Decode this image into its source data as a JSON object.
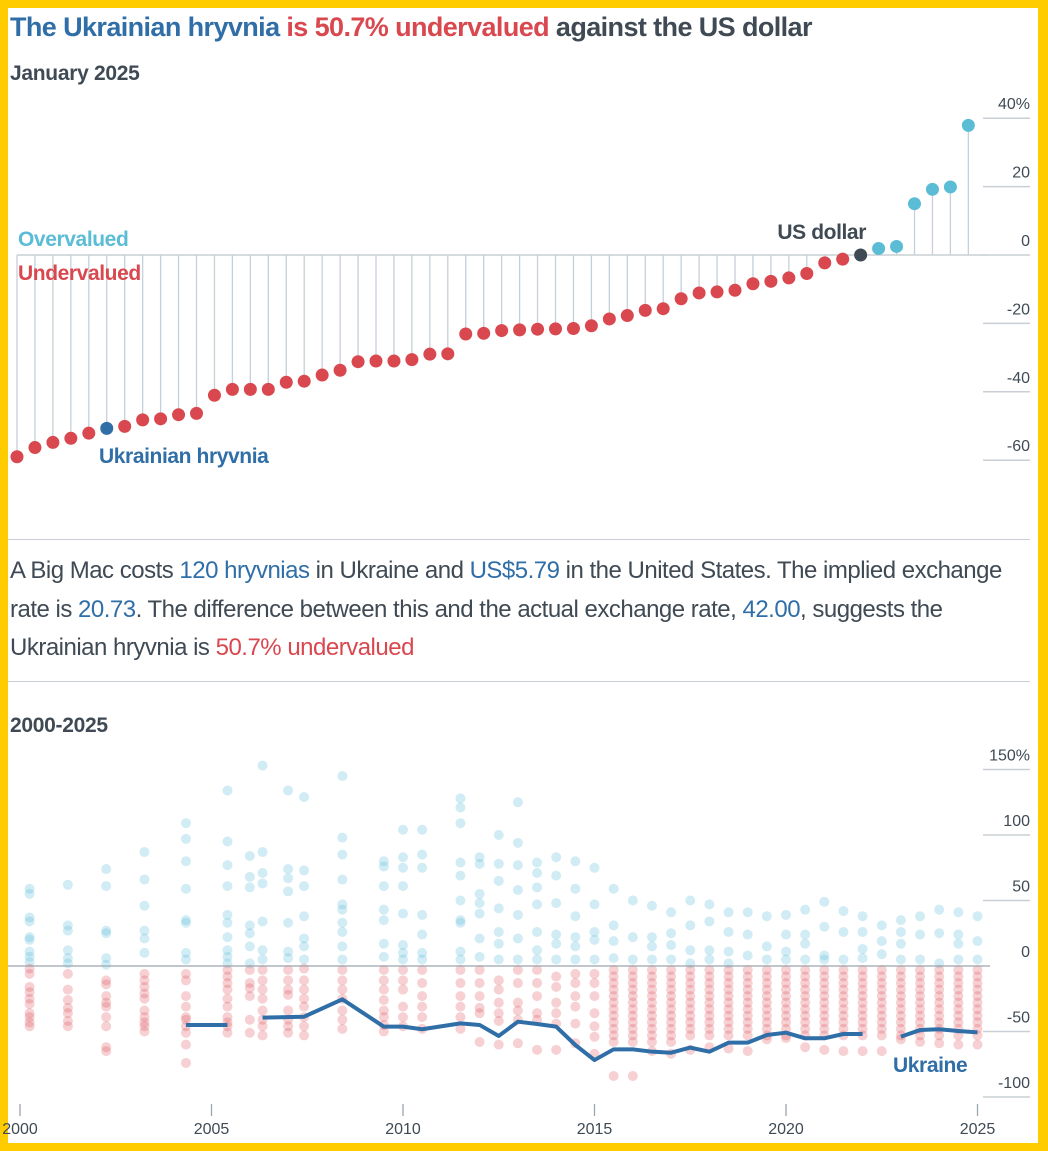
{
  "title": {
    "part1": "The Ukrainian hryvnia",
    "part2": " is 50.7% undervalued",
    "part3": " against the US dollar"
  },
  "colors": {
    "accent_blue": "#2f6ea6",
    "overvalued": "#5bbcd6",
    "undervalued": "#d9474f",
    "us_dollar": "#3f4a54",
    "frame": "#FFCC00"
  },
  "description": {
    "t1": "A Big Mac costs ",
    "v1": "120 hryvnias",
    "t2": " in Ukraine and ",
    "v2": "US$5.79",
    "t3": " in the United States. The implied exchange rate is ",
    "v3": "20.73",
    "t4": ". The difference between this and the actual exchange rate, ",
    "v4": "42.00",
    "t5": ", suggests the Ukrainian hryvnia is ",
    "v5": "50.7% undervalued"
  },
  "chart_data": [
    {
      "type": "lollipop",
      "subtitle": "January 2025",
      "unit": "%",
      "ylim": [
        -60,
        40
      ],
      "yticks": [
        "40%",
        "20",
        "0",
        "-20",
        "-40",
        "-60"
      ],
      "ytick_values": [
        40,
        20,
        0,
        -20,
        -40,
        -60
      ],
      "zone_labels": {
        "over": "Overvalued",
        "under": "Undervalued"
      },
      "annotations": {
        "hryvnia": "Ukrainian hryvnia",
        "usd": "US dollar"
      },
      "highlight": {
        "hryvnia_index": 5,
        "usd_index": 47
      },
      "values": [
        -59,
        -56.3,
        -54.8,
        -53.6,
        -52.1,
        -50.7,
        -50.1,
        -48.2,
        -47.9,
        -46.7,
        -46.3,
        -41,
        -39.3,
        -39.3,
        -39.3,
        -37.2,
        -36.9,
        -35.1,
        -33.7,
        -31.2,
        -31,
        -31,
        -30.6,
        -29,
        -28.9,
        -23.1,
        -22.9,
        -22.1,
        -21.9,
        -21.7,
        -21.6,
        -21.5,
        -20.7,
        -18.7,
        -17.7,
        -16.2,
        -15.7,
        -12.8,
        -11.1,
        -10.8,
        -10.3,
        -8.4,
        -7.7,
        -6.7,
        -5.4,
        -2.3,
        -1.2,
        0,
        1.9,
        2.5,
        15,
        19.2,
        19.9,
        37.9
      ]
    },
    {
      "type": "scatter",
      "subtitle": "2000-2025",
      "ylim": [
        -100,
        150
      ],
      "yticks": [
        "150%",
        "100",
        "50",
        "0",
        "-50",
        "-100"
      ],
      "ytick_values": [
        150,
        100,
        50,
        0,
        -50,
        -100
      ],
      "xticks": [
        "2000",
        "2005",
        "2010",
        "2015",
        "2020",
        "2025"
      ],
      "line_label": "Ukraine",
      "columns": [
        {
          "date": "2000-04",
          "values": [
            59,
            55,
            37,
            34,
            22,
            20,
            11,
            7,
            3,
            -2,
            -6,
            -16,
            -20,
            -25,
            -29,
            -36,
            -39,
            -43,
            -46
          ]
        },
        {
          "date": "2001-04",
          "values": [
            62,
            31,
            27,
            12,
            6,
            2,
            -6,
            -18,
            -26,
            -32,
            -36,
            -42,
            -46
          ]
        },
        {
          "date": "2002-04",
          "values": [
            74,
            61,
            27,
            25,
            6,
            1,
            -11,
            -14,
            -23,
            -28,
            -31,
            -39,
            -46,
            -62,
            -65
          ]
        },
        {
          "date": "2003-04",
          "values": [
            87,
            66,
            46,
            27,
            21,
            10,
            -6,
            -11,
            -16,
            -21,
            -25,
            -34,
            -39,
            -43,
            -46,
            -50
          ]
        },
        {
          "date": "2004-05",
          "values": [
            109,
            97,
            80,
            59,
            35,
            33,
            10,
            5,
            -6,
            -11,
            -23,
            -31,
            -39,
            -41,
            -46,
            -51,
            -60,
            -74
          ]
        },
        {
          "date": "2005-06",
          "values": [
            134,
            95,
            77,
            61,
            39,
            33,
            22,
            12,
            7,
            2,
            -3,
            -8,
            -13,
            -18,
            -25,
            -31,
            -39,
            -43,
            -46,
            -51
          ]
        },
        {
          "date": "2006-01",
          "values": [
            84,
            68,
            60,
            31,
            25,
            15,
            2,
            -3,
            -13,
            -17,
            -23,
            -41,
            -51
          ]
        },
        {
          "date": "2006-05",
          "values": [
            153,
            87,
            71,
            63,
            34,
            12,
            5,
            -3,
            -11,
            -18,
            -25,
            -34,
            -41,
            -46,
            -53
          ]
        },
        {
          "date": "2007-01",
          "values": [
            134,
            74,
            67,
            57,
            33,
            11,
            6,
            -3,
            -11,
            -18,
            -22,
            -34,
            -41,
            -46,
            -51
          ]
        },
        {
          "date": "2007-06",
          "values": [
            129,
            73,
            61,
            38,
            21,
            15,
            5,
            -2,
            -11,
            -18,
            -25,
            -31,
            -39,
            -46,
            -53
          ]
        },
        {
          "date": "2008-06",
          "values": [
            145,
            98,
            85,
            66,
            47,
            43,
            33,
            26,
            15,
            5,
            -3,
            -11,
            -18,
            -25,
            -34,
            -41,
            -48
          ]
        },
        {
          "date": "2009-07",
          "values": [
            80,
            76,
            61,
            43,
            35,
            17,
            7,
            -3,
            -11,
            -18,
            -26,
            -34,
            -39,
            -45,
            -50
          ]
        },
        {
          "date": "2010-01",
          "values": [
            104,
            83,
            75,
            61,
            40,
            16,
            10,
            5,
            -3,
            -11,
            -18,
            -31,
            -39,
            -46
          ]
        },
        {
          "date": "2010-07",
          "values": [
            104,
            85,
            75,
            39,
            24,
            10,
            5,
            -3,
            -13,
            -23,
            -31,
            -39,
            -48
          ]
        },
        {
          "date": "2011-07",
          "values": [
            128,
            121,
            109,
            79,
            69,
            50,
            35,
            33,
            11,
            5,
            -3,
            -13,
            -23,
            -31,
            -39,
            -48
          ]
        },
        {
          "date": "2012-01",
          "values": [
            83,
            78,
            55,
            48,
            40,
            21,
            7,
            -3,
            -13,
            -23,
            -32,
            -36,
            -58
          ]
        },
        {
          "date": "2012-07",
          "values": [
            100,
            78,
            65,
            44,
            26,
            17,
            5,
            -11,
            -18,
            -28,
            -36,
            -42,
            -60
          ]
        },
        {
          "date": "2013-01",
          "values": [
            125,
            94,
            77,
            58,
            39,
            21,
            5,
            -3,
            -13,
            -28,
            -34,
            -41,
            -59
          ]
        },
        {
          "date": "2013-07",
          "values": [
            79,
            71,
            60,
            47,
            26,
            12,
            5,
            -3,
            -13,
            -23,
            -36,
            -41,
            -64
          ]
        },
        {
          "date": "2014-01",
          "values": [
            83,
            69,
            48,
            24,
            17,
            5,
            -8,
            -16,
            -28,
            -36,
            -44,
            -64
          ]
        },
        {
          "date": "2014-07",
          "values": [
            80,
            59,
            38,
            22,
            15,
            5,
            -6,
            -13,
            -23,
            -31,
            -44,
            -59
          ]
        },
        {
          "date": "2015-01",
          "values": [
            75,
            47,
            26,
            20,
            5,
            -6,
            -13,
            -23,
            -36,
            -46,
            -54,
            -67
          ]
        },
        {
          "date": "2015-07",
          "values": [
            59,
            31,
            19,
            6,
            -3,
            -8,
            -13,
            -18,
            -23,
            -28,
            -33,
            -38,
            -43,
            -48,
            -53,
            -58,
            -84
          ]
        },
        {
          "date": "2016-01",
          "values": [
            50,
            22,
            5,
            -3,
            -8,
            -13,
            -18,
            -23,
            -28,
            -33,
            -38,
            -43,
            -48,
            -53,
            -58,
            -84
          ]
        },
        {
          "date": "2016-07",
          "values": [
            46,
            22,
            15,
            5,
            -3,
            -8,
            -13,
            -18,
            -23,
            -28,
            -33,
            -38,
            -43,
            -48,
            -53,
            -58,
            -65
          ]
        },
        {
          "date": "2017-01",
          "values": [
            41,
            25,
            16,
            5,
            -3,
            -8,
            -13,
            -18,
            -23,
            -28,
            -33,
            -38,
            -43,
            -48,
            -53,
            -58,
            -67
          ]
        },
        {
          "date": "2017-07",
          "values": [
            50,
            31,
            12,
            2,
            -3,
            -8,
            -13,
            -18,
            -23,
            -28,
            -33,
            -38,
            -43,
            -48,
            -53,
            -64
          ]
        },
        {
          "date": "2018-01",
          "values": [
            47,
            34,
            12,
            5,
            -3,
            -8,
            -13,
            -18,
            -23,
            -28,
            -33,
            -38,
            -43,
            -48,
            -53,
            -62
          ]
        },
        {
          "date": "2018-07",
          "values": [
            41,
            26,
            11,
            2,
            -3,
            -8,
            -13,
            -18,
            -23,
            -28,
            -33,
            -38,
            -43,
            -48,
            -53,
            -63
          ]
        },
        {
          "date": "2019-01",
          "values": [
            41,
            24,
            8,
            -3,
            -8,
            -13,
            -18,
            -23,
            -28,
            -33,
            -38,
            -43,
            -48,
            -53,
            -65
          ]
        },
        {
          "date": "2019-07",
          "values": [
            38,
            15,
            5,
            -3,
            -8,
            -13,
            -18,
            -23,
            -28,
            -33,
            -38,
            -43,
            -48,
            -53,
            -56
          ]
        },
        {
          "date": "2020-01",
          "values": [
            39,
            24,
            11,
            5,
            -3,
            -8,
            -13,
            -18,
            -23,
            -28,
            -33,
            -38,
            -43,
            -48,
            -53,
            -55
          ]
        },
        {
          "date": "2020-07",
          "values": [
            43,
            24,
            17,
            5,
            -3,
            -8,
            -13,
            -18,
            -23,
            -28,
            -33,
            -38,
            -43,
            -48,
            -53,
            -62
          ]
        },
        {
          "date": "2021-01",
          "values": [
            49,
            30,
            8,
            5,
            -3,
            -8,
            -13,
            -18,
            -23,
            -28,
            -33,
            -38,
            -43,
            -48,
            -53,
            -64
          ]
        },
        {
          "date": "2021-07",
          "values": [
            42,
            26,
            5,
            -3,
            -8,
            -13,
            -18,
            -23,
            -28,
            -33,
            -38,
            -43,
            -48,
            -53,
            -65
          ]
        },
        {
          "date": "2022-01",
          "values": [
            38,
            26,
            13,
            6,
            -3,
            -8,
            -13,
            -18,
            -23,
            -28,
            -33,
            -38,
            -43,
            -48,
            -53,
            -65
          ]
        },
        {
          "date": "2022-07",
          "values": [
            31,
            19,
            9,
            -3,
            -8,
            -13,
            -18,
            -23,
            -28,
            -33,
            -38,
            -43,
            -48,
            -53,
            -65
          ]
        },
        {
          "date": "2023-01",
          "values": [
            35,
            26,
            17,
            5,
            -3,
            -8,
            -13,
            -18,
            -23,
            -28,
            -33,
            -38,
            -43,
            -48,
            -53,
            -56
          ]
        },
        {
          "date": "2023-07",
          "values": [
            38,
            24,
            5,
            -3,
            -8,
            -13,
            -18,
            -23,
            -28,
            -33,
            -38,
            -43,
            -48,
            -53,
            -58
          ]
        },
        {
          "date": "2024-01",
          "values": [
            43,
            25,
            2,
            -3,
            -8,
            -13,
            -18,
            -23,
            -28,
            -33,
            -38,
            -43,
            -48,
            -53,
            -59
          ]
        },
        {
          "date": "2024-07",
          "values": [
            41,
            24,
            17,
            5,
            -3,
            -8,
            -13,
            -18,
            -23,
            -28,
            -33,
            -38,
            -43,
            -48,
            -53,
            -60
          ]
        },
        {
          "date": "2025-01",
          "values": [
            38,
            19,
            5,
            -3,
            -8,
            -13,
            -18,
            -23,
            -28,
            -33,
            -38,
            -43,
            -48,
            -53,
            -60
          ]
        }
      ],
      "line": {
        "name": "Ukraine",
        "points": [
          {
            "date": "2004-05",
            "value": -45
          },
          {
            "date": "2005-06",
            "value": -45
          },
          {
            "date": "2006-01",
            "value": null
          },
          {
            "date": "2006-05",
            "value": -39.4
          },
          {
            "date": "2007-06",
            "value": -38.7
          },
          {
            "date": "2008-06",
            "value": -25.4
          },
          {
            "date": "2009-07",
            "value": -46.3
          },
          {
            "date": "2010-01",
            "value": -46.3
          },
          {
            "date": "2010-07",
            "value": -48.3
          },
          {
            "date": "2011-07",
            "value": -43.8
          },
          {
            "date": "2012-01",
            "value": -45
          },
          {
            "date": "2012-07",
            "value": -53.4
          },
          {
            "date": "2013-01",
            "value": -42.5
          },
          {
            "date": "2013-07",
            "value": -44.3
          },
          {
            "date": "2014-01",
            "value": -46.3
          },
          {
            "date": "2014-07",
            "value": -60.3
          },
          {
            "date": "2015-01",
            "value": -71.8
          },
          {
            "date": "2015-07",
            "value": -63.6
          },
          {
            "date": "2016-01",
            "value": -63.6
          },
          {
            "date": "2016-07",
            "value": -65.4
          },
          {
            "date": "2017-01",
            "value": -66.2
          },
          {
            "date": "2017-07",
            "value": -62.3
          },
          {
            "date": "2018-01",
            "value": -65.4
          },
          {
            "date": "2018-07",
            "value": -58.5
          },
          {
            "date": "2019-01",
            "value": -58.5
          },
          {
            "date": "2019-07",
            "value": -52.7
          },
          {
            "date": "2020-01",
            "value": -50.9
          },
          {
            "date": "2020-07",
            "value": -55.2
          },
          {
            "date": "2021-01",
            "value": -55.2
          },
          {
            "date": "2021-07",
            "value": -51.9
          },
          {
            "date": "2022-01",
            "value": -51.9
          },
          {
            "date": "2022-07",
            "value": null
          },
          {
            "date": "2023-01",
            "value": -53.9
          },
          {
            "date": "2023-07",
            "value": -48.9
          },
          {
            "date": "2024-01",
            "value": -48.3
          },
          {
            "date": "2024-07",
            "value": -49.6
          },
          {
            "date": "2025-01",
            "value": -50.7
          }
        ]
      }
    }
  ]
}
